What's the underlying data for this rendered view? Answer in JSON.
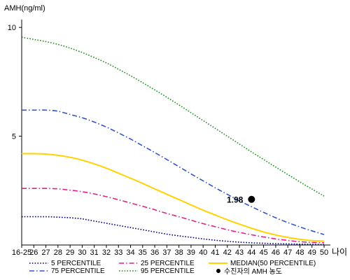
{
  "chart_data": {
    "type": "line",
    "ylabel": "AMH(ng/ml)",
    "xlabel": "나이",
    "categories": [
      "16-25",
      "26",
      "27",
      "28",
      "29",
      "30",
      "31",
      "32",
      "33",
      "34",
      "35",
      "36",
      "37",
      "38",
      "39",
      "40",
      "41",
      "42",
      "43",
      "44",
      "45",
      "46",
      "47",
      "48",
      "49",
      "50"
    ],
    "y_ticks": [
      "5",
      "10"
    ],
    "ylim": [
      0,
      11.1
    ],
    "grid": false,
    "legend_position": "bottom",
    "series": [
      {
        "name": "5 PERCENTILE",
        "color": "#000080",
        "style": "dotted",
        "values": [
          1.3,
          1.3,
          1.3,
          1.28,
          1.25,
          1.2,
          1.1,
          1.0,
          0.9,
          0.8,
          0.7,
          0.6,
          0.5,
          0.42,
          0.35,
          0.28,
          0.22,
          0.17,
          0.13,
          0.1,
          0.08,
          0.06,
          0.05,
          0.04,
          0.03,
          0.02
        ]
      },
      {
        "name": "25 PERCENTILE",
        "color": "#e0218a",
        "style": "dashdot",
        "values": [
          2.6,
          2.6,
          2.6,
          2.58,
          2.52,
          2.45,
          2.35,
          2.22,
          2.08,
          1.93,
          1.78,
          1.62,
          1.45,
          1.3,
          1.14,
          0.98,
          0.84,
          0.7,
          0.58,
          0.47,
          0.37,
          0.28,
          0.21,
          0.15,
          0.12,
          0.1
        ]
      },
      {
        "name": "MEDIAN(50 PERCENTILE)",
        "color": "#ffd200",
        "style": "solid",
        "values": [
          4.2,
          4.2,
          4.18,
          4.12,
          4.03,
          3.9,
          3.73,
          3.53,
          3.3,
          3.07,
          2.83,
          2.58,
          2.33,
          2.09,
          1.84,
          1.6,
          1.38,
          1.16,
          0.96,
          0.77,
          0.6,
          0.46,
          0.35,
          0.26,
          0.2,
          0.18
        ]
      },
      {
        "name": "75 PERCENTILE",
        "color": "#3355cc",
        "style": "dashdot",
        "values": [
          6.2,
          6.2,
          6.2,
          6.15,
          6.0,
          5.85,
          5.65,
          5.42,
          5.15,
          4.87,
          4.56,
          4.25,
          3.93,
          3.6,
          3.27,
          2.95,
          2.63,
          2.33,
          2.03,
          1.76,
          1.5,
          1.25,
          1.03,
          0.83,
          0.65,
          0.48
        ]
      },
      {
        "name": "95 PERCENTILE",
        "color": "#228b22",
        "style": "dotted",
        "values": [
          9.55,
          9.45,
          9.35,
          9.22,
          9.05,
          8.85,
          8.62,
          8.37,
          8.08,
          7.78,
          7.46,
          7.13,
          6.79,
          6.44,
          6.08,
          5.72,
          5.36,
          5.0,
          4.64,
          4.28,
          3.93,
          3.58,
          3.24,
          2.9,
          2.57,
          2.25
        ]
      }
    ],
    "annotation": {
      "legend_label": "수진자의 AMH 농도",
      "text": "1.98",
      "x": "44",
      "y": 2.1
    }
  }
}
